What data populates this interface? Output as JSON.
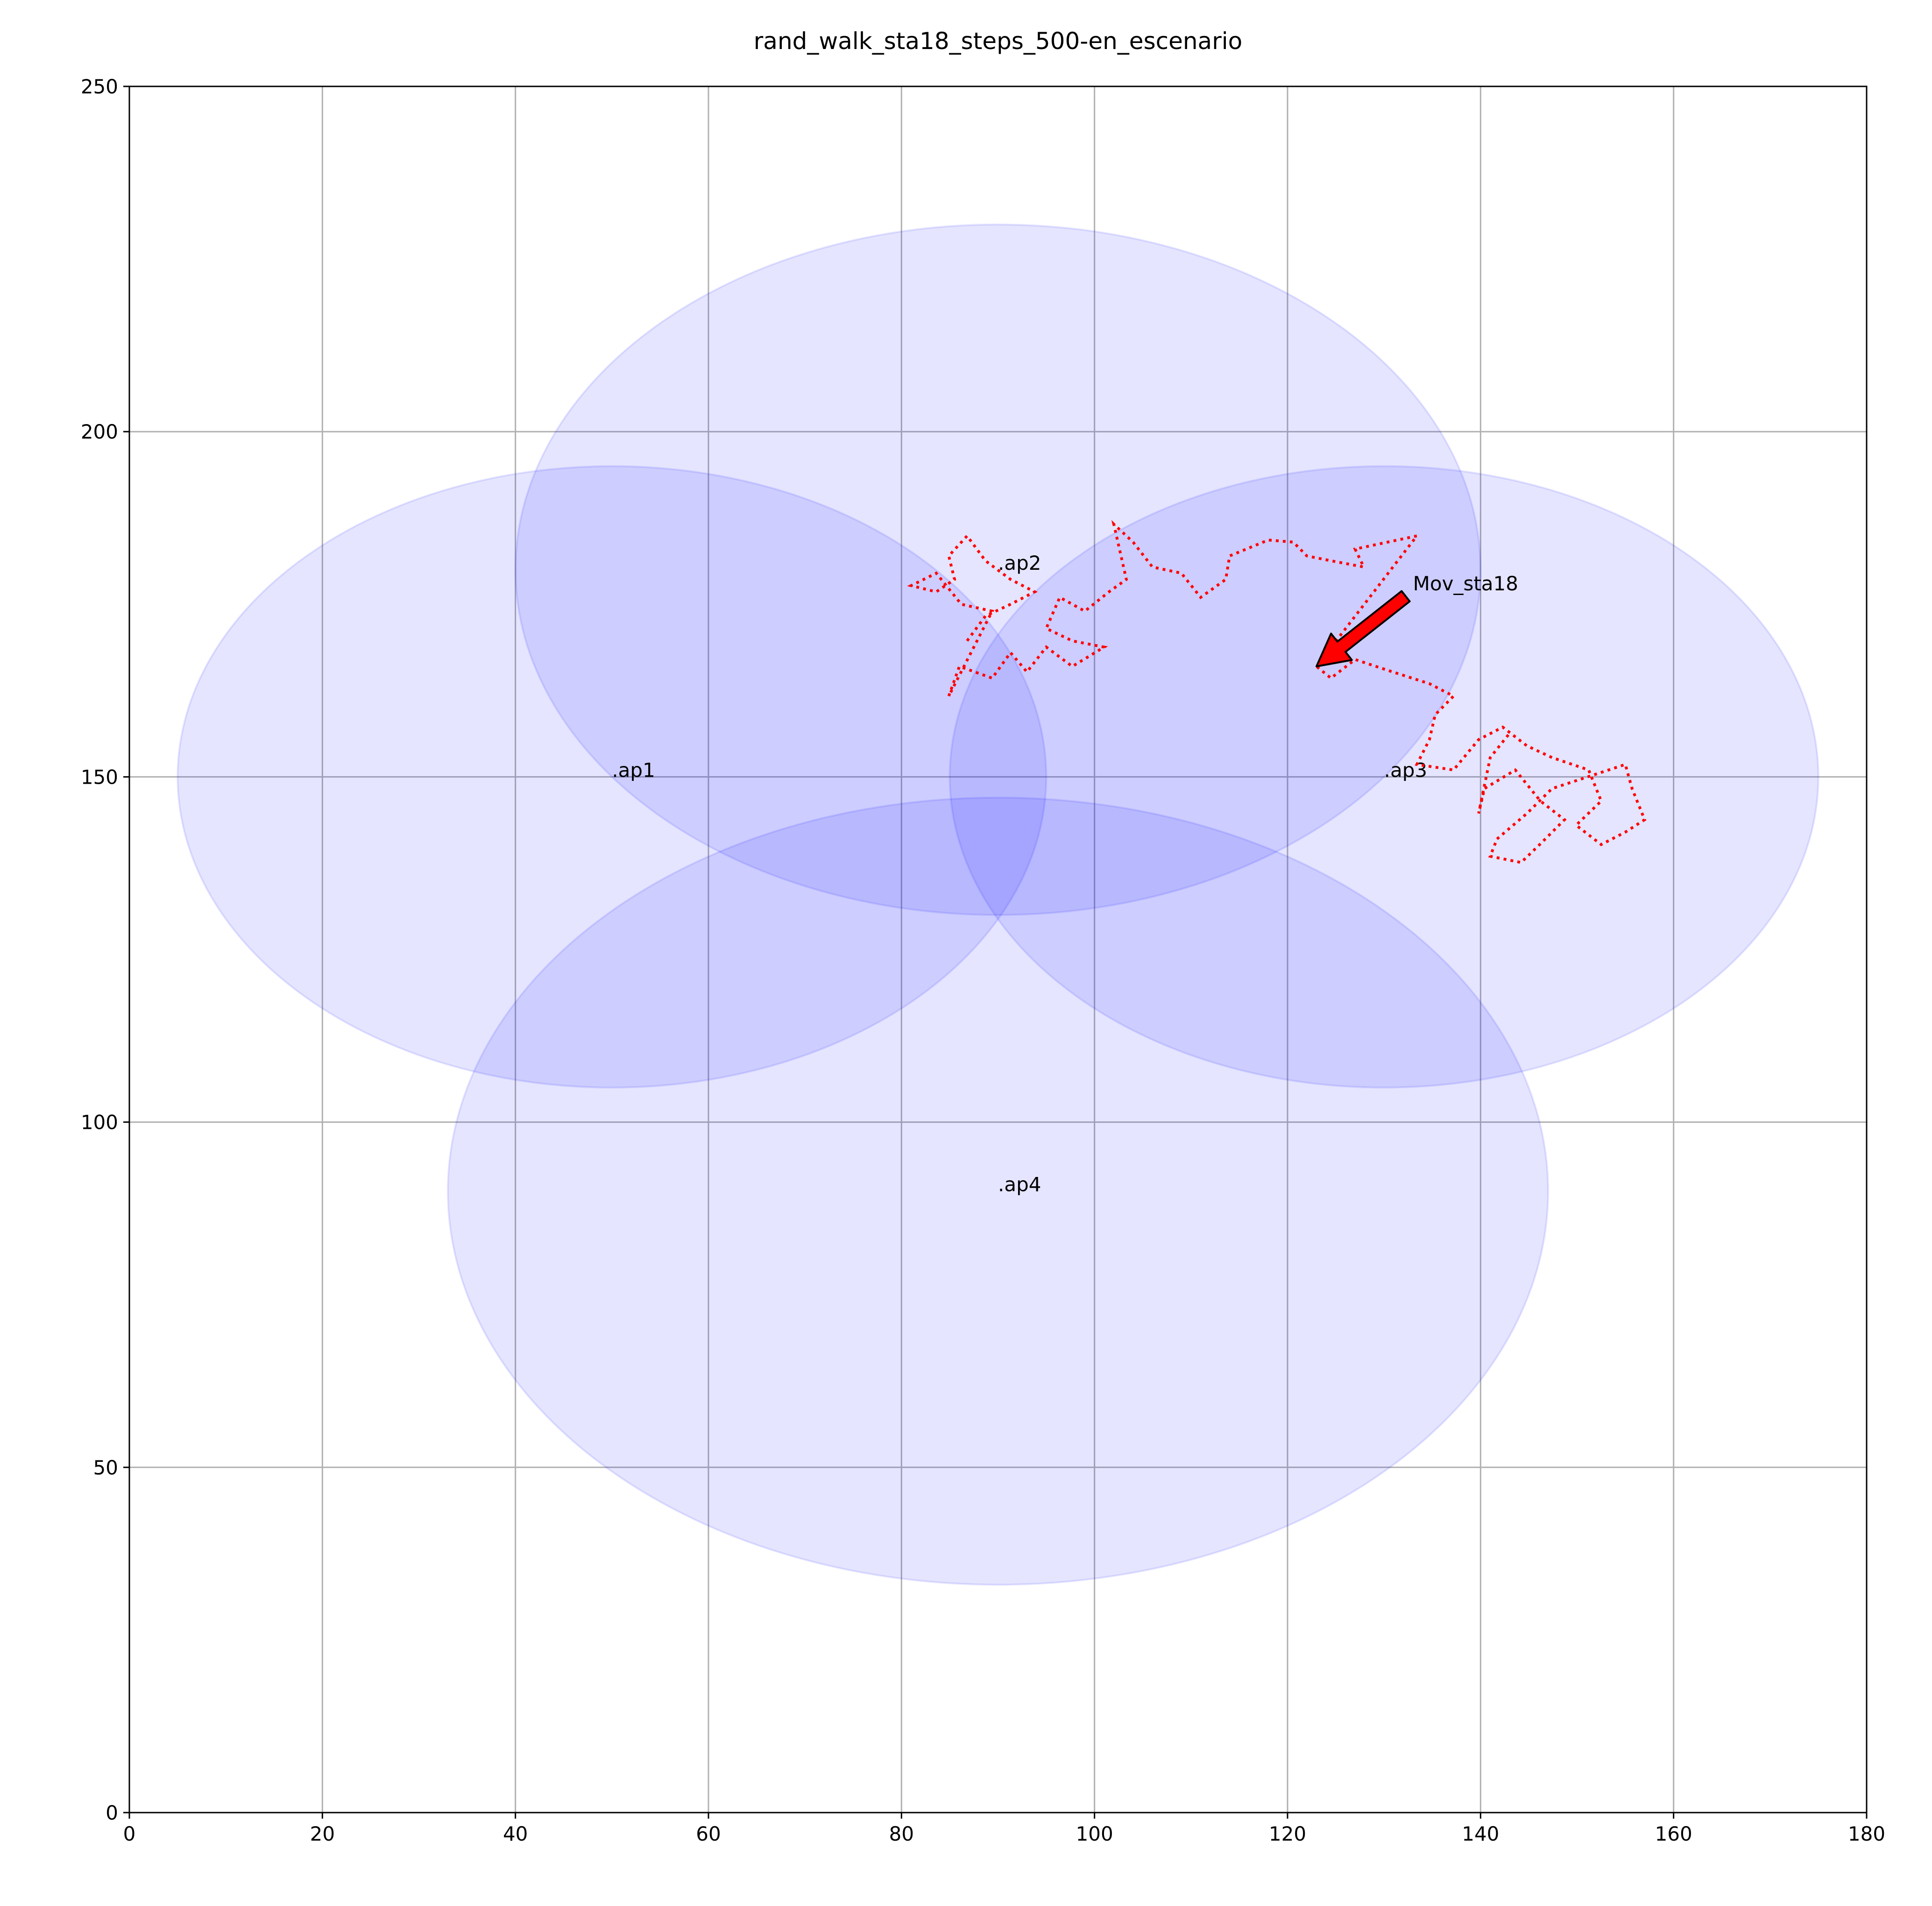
{
  "chart_data": {
    "type": "line",
    "title": "rand_walk_sta18_steps_500-en_escenario",
    "xlim": [
      0,
      180
    ],
    "ylim": [
      0,
      250
    ],
    "xticks": [
      0,
      20,
      40,
      60,
      80,
      100,
      120,
      140,
      160,
      180
    ],
    "yticks": [
      0,
      50,
      100,
      150,
      200,
      250
    ],
    "grid": true,
    "circles": [
      {
        "label": ".ap1",
        "x": 50,
        "y": 150,
        "radius": 45
      },
      {
        "label": ".ap2",
        "x": 90,
        "y": 180,
        "radius": 50
      },
      {
        "label": ".ap3",
        "x": 130,
        "y": 150,
        "radius": 45
      },
      {
        "label": ".ap4",
        "x": 90,
        "y": 90,
        "radius": 57
      }
    ],
    "circle_color": "#0000ff",
    "x": [
      86.8,
      88.7,
      91.3,
      93.8,
      91.3,
      88.7,
      86.8,
      84.9,
      85.5,
      83.6,
      81,
      83.6,
      86.2,
      89.4,
      84.9,
      86,
      89.4,
      91.3,
      93,
      95,
      97.7,
      101,
      97.7,
      95,
      96.4,
      99,
      101.5,
      103.3,
      102,
      104,
      106,
      109,
      111,
      113.6,
      114,
      118,
      120.6,
      122,
      124.5,
      127.9,
      127,
      133.4,
      123,
      124.5,
      127,
      130.9,
      134.7,
      137.2,
      135.3,
      134.7,
      133.4,
      137.2,
      139.8,
      142.3,
      144.8,
      147.4,
      151.2,
      152.5,
      149.9,
      152.5,
      155,
      157,
      155.7,
      155,
      147.4,
      144.8,
      141.7,
      141,
      144.2,
      146.2,
      148.7,
      146.2,
      143.6,
      140.4,
      139.8,
      141,
      143
    ],
    "series": [
      {
        "color": "#ff0000",
        "values": [
          169.7,
          173.3,
          175,
          176.8,
          178.6,
          181.3,
          184.9,
          182,
          178.6,
          176.8,
          177.7,
          179.5,
          175,
          174,
          161.7,
          166,
          164.3,
          168,
          165.2,
          168.8,
          166,
          168.8,
          169.7,
          171.5,
          176,
          174,
          176.8,
          178.6,
          186.6,
          184,
          180.4,
          179.5,
          176,
          178.6,
          182,
          184.3,
          184,
          182,
          181.3,
          180.4,
          183,
          184.9,
          166,
          164.3,
          167,
          165.2,
          163.5,
          161.7,
          159,
          155.4,
          151.8,
          151,
          155.4,
          157.2,
          154.5,
          152.8,
          151,
          146.5,
          143,
          140.2,
          142,
          143.8,
          148.3,
          151.8,
          148.3,
          144.7,
          141,
          138.5,
          137.6,
          140.3,
          143.8,
          146.5,
          151,
          148.3,
          144.7,
          152.8,
          156.3
        ]
      }
    ],
    "annotation": {
      "text": "Mov_sta18",
      "xy": [
        123,
        166
      ],
      "xytext": [
        133,
        177
      ],
      "color": "#ff0000"
    }
  }
}
